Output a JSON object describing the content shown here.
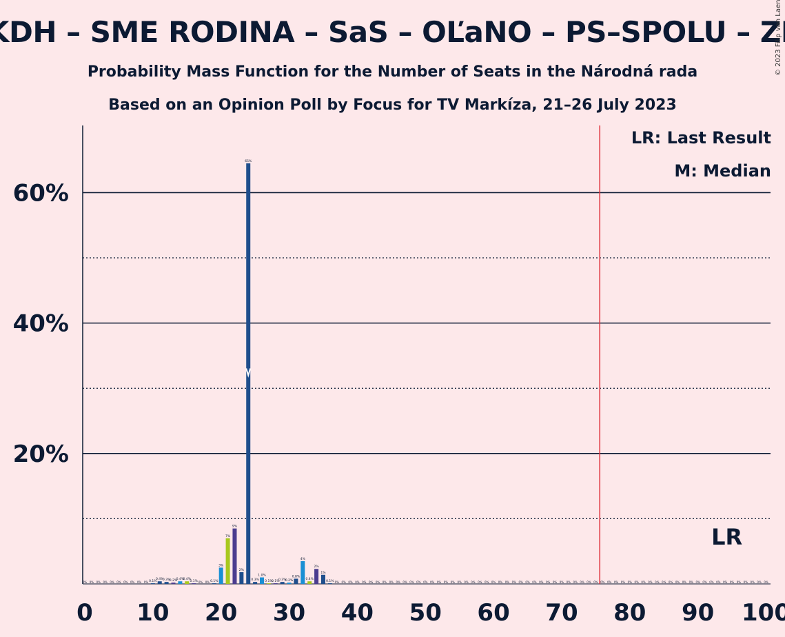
{
  "header": {
    "title": "KDH – SME RODINA – SaS – OĽaNO – PS–SPOLU – ZL",
    "subtitle_1": "Probability Mass Function for the Number of Seats in the Národná rada",
    "subtitle_2": "Based on an Opinion Poll by Focus for TV Markíza, 21–26 July 2023",
    "copyright": "© 2023 Filip van Laenen"
  },
  "legend": {
    "last_result": "LR: Last Result",
    "median": "M: Median"
  },
  "colors": {
    "background": "#fde8ea",
    "majority_line": "#e0303a",
    "bar_dark_blue": "#1f4e8c",
    "bar_light_blue": "#1a8fd4",
    "bar_purple": "#4b3c8f",
    "bar_lime": "#a8c81e",
    "text": "#0c1a33"
  },
  "chart_data": {
    "type": "bar",
    "title": "KDH – SME RODINA – SaS – OĽaNO – PS–SPOLU – ZL",
    "xlabel": "",
    "ylabel": "",
    "xlim": [
      0,
      100
    ],
    "ylim": [
      0,
      70
    ],
    "x_ticks": [
      0,
      10,
      20,
      30,
      40,
      50,
      60,
      70,
      80,
      90,
      100
    ],
    "x_tick_labels": [
      "0",
      "10",
      "20",
      "30",
      "40",
      "50",
      "60",
      "70",
      "80",
      "90",
      "100"
    ],
    "y_ticks_solid": [
      20,
      40,
      60
    ],
    "y_ticks_dotted": [
      10,
      30,
      50
    ],
    "y_tick_labels": [
      "20%",
      "40%",
      "60%"
    ],
    "majority_line_x": 76,
    "median_seat": 24,
    "last_result_label": "LR",
    "last_result_seat": 95,
    "grid": true,
    "legend_position": "top-right",
    "bars": [
      {
        "x": 10,
        "value": 0.1,
        "label": "0.1%",
        "color": "bar_dark_blue"
      },
      {
        "x": 11,
        "value": 0.4,
        "label": "0.4%",
        "color": "bar_dark_blue"
      },
      {
        "x": 12,
        "value": 0.3,
        "label": "0.3%",
        "color": "bar_dark_blue"
      },
      {
        "x": 13,
        "value": 0.2,
        "label": "0.2%",
        "color": "bar_purple"
      },
      {
        "x": 14,
        "value": 0.4,
        "label": "0.4%",
        "color": "bar_light_blue"
      },
      {
        "x": 15,
        "value": 0.4,
        "label": "0.4%",
        "color": "bar_lime"
      },
      {
        "x": 16,
        "value": 0.1,
        "label": "0.1%",
        "color": "bar_purple"
      },
      {
        "x": 19,
        "value": 0.1,
        "label": "0.1%",
        "color": "bar_dark_blue"
      },
      {
        "x": 20,
        "value": 2.5,
        "label": "3%",
        "color": "bar_light_blue"
      },
      {
        "x": 21,
        "value": 7.0,
        "label": "7%",
        "color": "bar_lime"
      },
      {
        "x": 22,
        "value": 8.5,
        "label": "9%",
        "color": "bar_purple"
      },
      {
        "x": 23,
        "value": 1.8,
        "label": "2%",
        "color": "bar_dark_blue"
      },
      {
        "x": 24,
        "value": 64.5,
        "label": "65%",
        "color": "bar_dark_blue"
      },
      {
        "x": 25,
        "value": 0.3,
        "label": "0.3%",
        "color": "bar_dark_blue"
      },
      {
        "x": 26,
        "value": 1.0,
        "label": "1.0%",
        "color": "bar_light_blue"
      },
      {
        "x": 27,
        "value": 0.1,
        "label": "0.1%",
        "color": "bar_lime"
      },
      {
        "x": 28,
        "value": 0.1,
        "label": "0.1%",
        "color": "bar_purple"
      },
      {
        "x": 29,
        "value": 0.3,
        "label": "0.3%",
        "color": "bar_dark_blue"
      },
      {
        "x": 30,
        "value": 0.2,
        "label": "0.2%",
        "color": "bar_light_blue"
      },
      {
        "x": 31,
        "value": 0.8,
        "label": "0.8%",
        "color": "bar_dark_blue"
      },
      {
        "x": 32,
        "value": 3.5,
        "label": "4%",
        "color": "bar_light_blue"
      },
      {
        "x": 33,
        "value": 0.4,
        "label": "0.4%",
        "color": "bar_lime"
      },
      {
        "x": 34,
        "value": 2.3,
        "label": "2%",
        "color": "bar_purple"
      },
      {
        "x": 35,
        "value": 1.4,
        "label": "1%",
        "color": "bar_dark_blue"
      },
      {
        "x": 36,
        "value": 0.1,
        "label": "0.1%",
        "color": "bar_dark_blue"
      }
    ],
    "zero_labels": [
      0,
      1,
      2,
      3,
      4,
      5,
      6,
      7,
      8,
      9,
      17,
      18,
      37,
      38,
      39,
      40,
      41,
      42,
      43,
      44,
      45,
      46,
      47,
      48,
      49,
      50,
      51,
      52,
      53,
      54,
      55,
      56,
      57,
      58,
      59,
      60,
      61,
      62,
      63,
      64,
      65,
      66,
      67,
      68,
      69,
      70,
      71,
      72,
      73,
      74,
      75,
      76,
      77,
      78,
      79,
      80,
      81,
      82,
      83,
      84,
      85,
      86,
      87,
      88,
      89,
      90,
      91,
      92,
      93,
      94,
      95,
      96,
      97,
      98,
      99,
      100
    ],
    "zero_label_text": "0%"
  }
}
